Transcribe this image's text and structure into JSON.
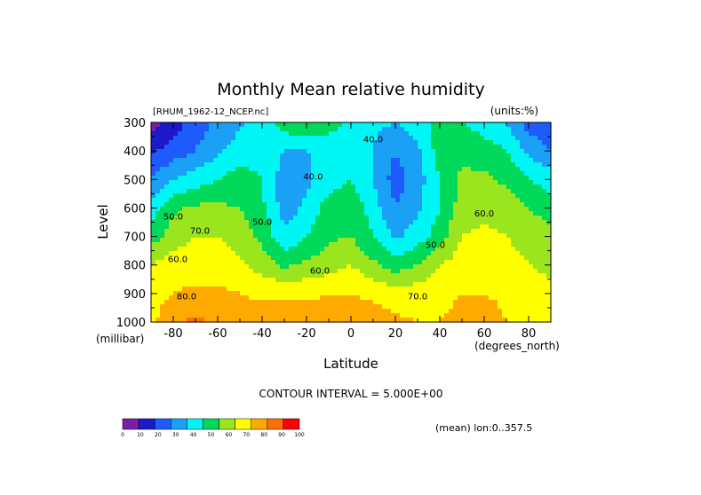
{
  "chart_data": {
    "type": "heatmap",
    "title": "Monthly Mean relative humidity",
    "source_label": "[RHUM_1962-12_NCEP.nc]",
    "units_label": "(units:%)",
    "xlabel": "Latitude",
    "ylabel": "Level",
    "x_unit_label": "(degrees_north)",
    "y_unit_label": "(millibar)",
    "contour_interval_label": "CONTOUR INTERVAL = 5.000E+00",
    "mean_label": "(mean) lon:0..357.5",
    "xlim": [
      -90,
      90
    ],
    "ylim": [
      1000,
      300
    ],
    "x_ticks": [
      -80,
      -60,
      -40,
      -20,
      0,
      20,
      40,
      60,
      80
    ],
    "y_ticks": [
      300,
      400,
      500,
      600,
      700,
      800,
      900,
      1000
    ],
    "x": [
      -90,
      -80,
      -70,
      -60,
      -50,
      -40,
      -30,
      -20,
      -10,
      0,
      10,
      20,
      30,
      40,
      50,
      60,
      70,
      80,
      90
    ],
    "y": [
      300,
      400,
      500,
      600,
      700,
      800,
      900,
      1000
    ],
    "z": [
      [
        5,
        15,
        25,
        32,
        38,
        45,
        55,
        60,
        55,
        48,
        42,
        40,
        45,
        55,
        50,
        45,
        40,
        25,
        20
      ],
      [
        18,
        25,
        30,
        38,
        45,
        45,
        40,
        40,
        42,
        45,
        40,
        30,
        38,
        55,
        58,
        55,
        50,
        38,
        30
      ],
      [
        30,
        40,
        45,
        50,
        55,
        50,
        35,
        38,
        45,
        50,
        40,
        25,
        35,
        50,
        62,
        62,
        58,
        50,
        45
      ],
      [
        45,
        58,
        62,
        62,
        60,
        52,
        35,
        42,
        55,
        58,
        45,
        30,
        38,
        50,
        65,
        68,
        65,
        60,
        55
      ],
      [
        55,
        65,
        70,
        70,
        65,
        58,
        42,
        50,
        58,
        60,
        50,
        38,
        45,
        55,
        70,
        72,
        70,
        68,
        62
      ],
      [
        70,
        75,
        75,
        75,
        72,
        65,
        58,
        62,
        65,
        70,
        62,
        55,
        60,
        70,
        75,
        75,
        72,
        70,
        68
      ],
      [
        75,
        80,
        82,
        82,
        80,
        78,
        78,
        78,
        80,
        80,
        78,
        75,
        75,
        78,
        80,
        80,
        78,
        75,
        72
      ],
      [
        78,
        88,
        92,
        88,
        85,
        85,
        85,
        85,
        85,
        85,
        85,
        82,
        80,
        80,
        82,
        85,
        80,
        78,
        75
      ]
    ],
    "colorbar": {
      "ticks": [
        "0",
        "10",
        "20",
        "30",
        "40",
        "50",
        "60",
        "70",
        "80",
        "90",
        "100"
      ],
      "colors": [
        "#7a1fa2",
        "#1b19c8",
        "#1e5bfc",
        "#1aa0f5",
        "#00f5f5",
        "#00d95a",
        "#9be51e",
        "#ffff00",
        "#ffaa00",
        "#ff6e00",
        "#ff0000"
      ]
    },
    "contour_labels": [
      {
        "text": "40.0",
        "lat": 10,
        "lev": 370
      },
      {
        "text": "40.0",
        "lat": -17,
        "lev": 500
      },
      {
        "text": "50.0",
        "lat": -80,
        "lev": 640
      },
      {
        "text": "50.0",
        "lat": -40,
        "lev": 660
      },
      {
        "text": "50.0",
        "lat": 38,
        "lev": 740
      },
      {
        "text": "60.0",
        "lat": -78,
        "lev": 790
      },
      {
        "text": "60.0",
        "lat": -14,
        "lev": 830
      },
      {
        "text": "60.0",
        "lat": 60,
        "lev": 630
      },
      {
        "text": "70.0",
        "lat": -68,
        "lev": 690
      },
      {
        "text": "70.0",
        "lat": 30,
        "lev": 920
      },
      {
        "text": "80.0",
        "lat": -74,
        "lev": 920
      }
    ],
    "legend": "bottom-left colorbar",
    "grid": false
  }
}
